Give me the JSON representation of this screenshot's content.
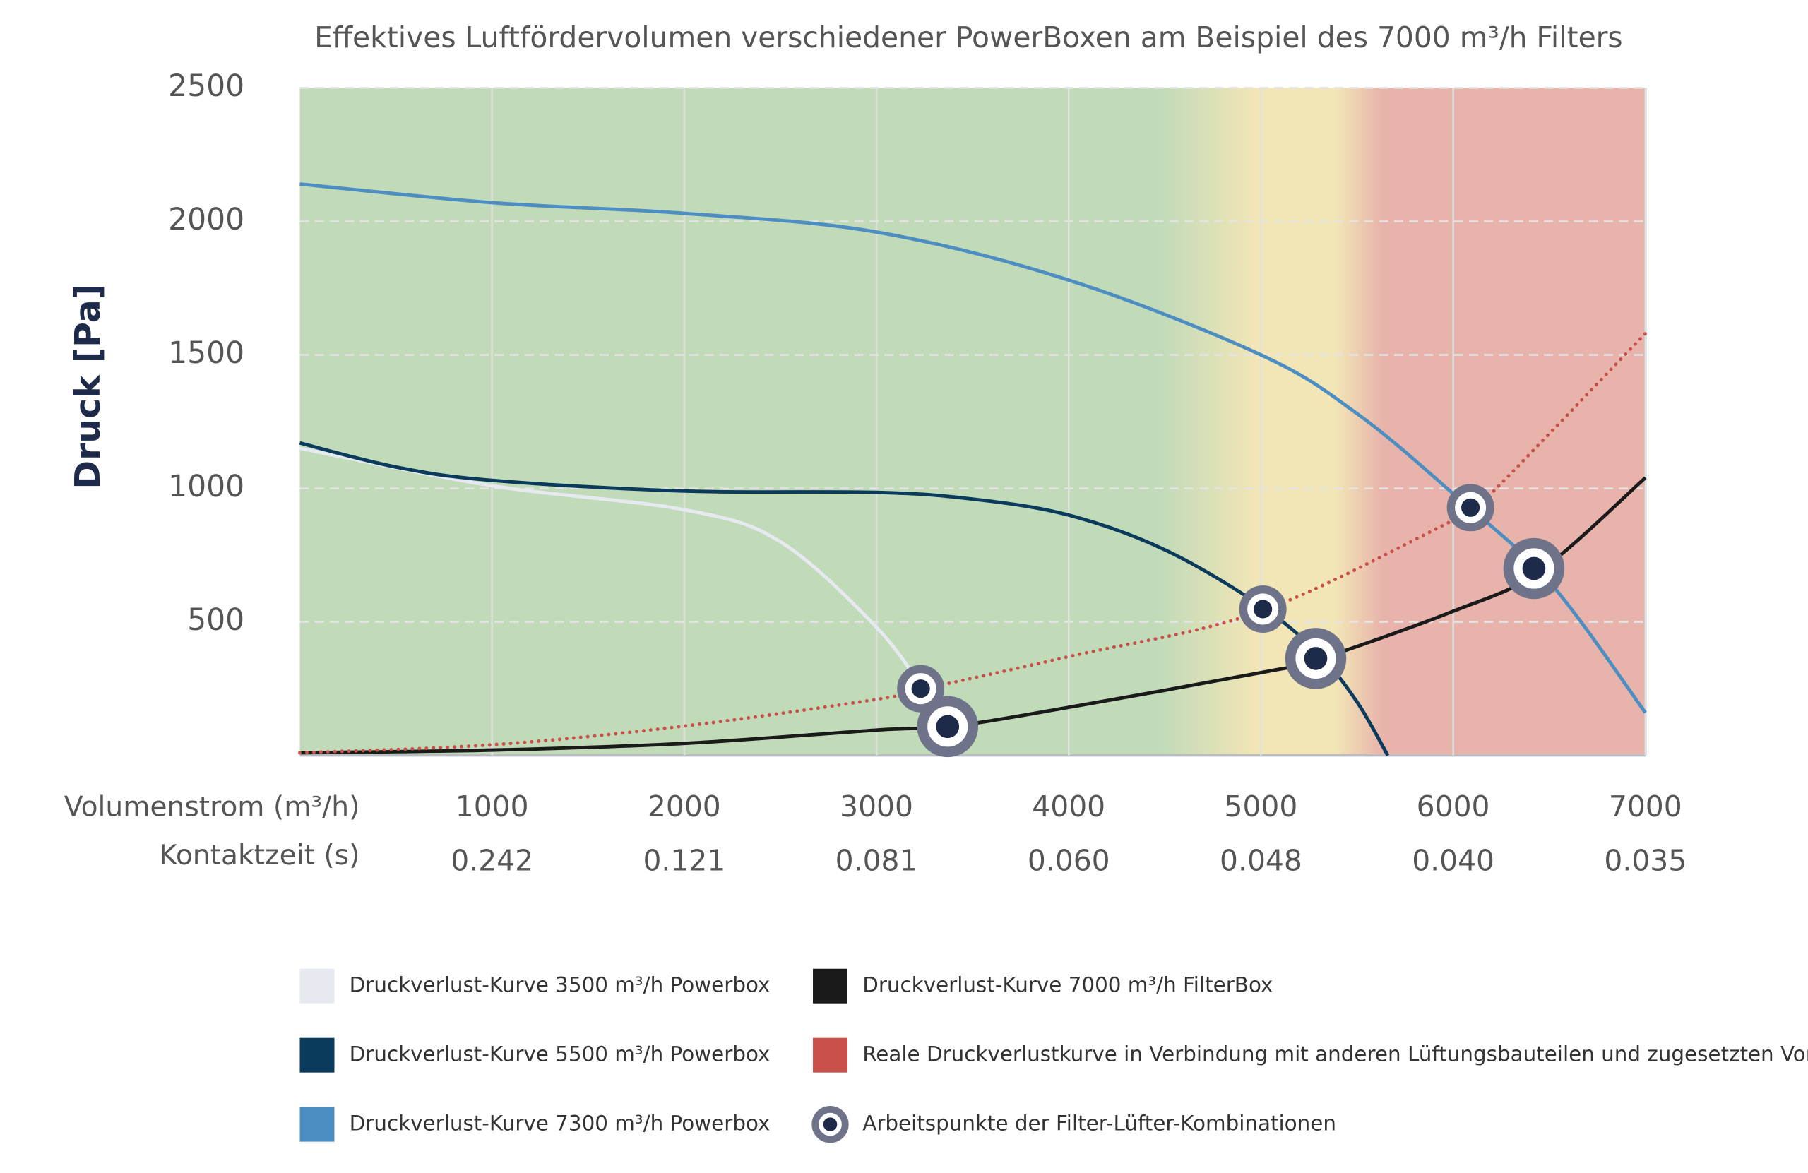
{
  "chart_data": {
    "type": "line",
    "title": "Effektives Luftfördervolumen verschiedener PowerBoxen am Beispiel des 7000 m³/h Filters",
    "y_label": "Druck [Pa]",
    "x_label": "Volumenstrom (m³/h)",
    "xlim": [
      0,
      7000
    ],
    "xticks": [
      1000,
      2000,
      3000,
      4000,
      5000,
      6000,
      7000
    ],
    "ylim": [
      0,
      2500
    ],
    "yticks": [
      500,
      1000,
      1500,
      2000,
      2500
    ],
    "grid": true,
    "contact_time": {
      "label": "Kontaktzeit (s)",
      "labels": [
        "0.242",
        "0.121",
        "0.081",
        "0.060",
        "0.048",
        "0.040",
        "0.035"
      ]
    },
    "series": [
      {
        "name": "Druckverlust-Kurve 3500 m³/h Powerbox",
        "color": "#e6e9ef",
        "style": "solid",
        "x": [
          0,
          1000,
          2000,
          2500,
          3000,
          3250
        ],
        "values": [
          1150,
          1010,
          920,
          800,
          480,
          240
        ]
      },
      {
        "name": "Druckverlust-Kurve 5500 m³/h Powerbox",
        "color": "#0b3b5c",
        "style": "solid",
        "x": [
          0,
          500,
          1000,
          2000,
          3000,
          3500,
          4000,
          4500,
          5000,
          5300,
          5500,
          5660
        ],
        "values": [
          1170,
          1080,
          1030,
          990,
          985,
          960,
          900,
          770,
          560,
          380,
          200,
          0
        ]
      },
      {
        "name": "Druckverlust-Kurve 7300 m³/h Powerbox",
        "color": "#4d8ec2",
        "style": "solid",
        "x": [
          0,
          1000,
          2000,
          3000,
          4000,
          5000,
          5500,
          6000,
          6500,
          7000
        ],
        "values": [
          2140,
          2070,
          2030,
          1960,
          1780,
          1500,
          1280,
          980,
          650,
          160
        ]
      },
      {
        "name": "Druckverlust-Kurve 7000 m³/h FilterBox",
        "color": "#1a1a1a",
        "style": "solid",
        "x": [
          0,
          1000,
          2000,
          3000,
          3400,
          4000,
          5000,
          5300,
          6000,
          6450,
          7000
        ],
        "values": [
          10,
          20,
          45,
          95,
          110,
          180,
          310,
          360,
          540,
          690,
          1040
        ]
      },
      {
        "name": "Reale Druckverlustkurve in Verbindung mit anderen Lüftungsbauteilen und zugesetzten Vorfiltern",
        "color": "#c8504a",
        "style": "dotted",
        "x": [
          0,
          1000,
          2000,
          3000,
          3250,
          4000,
          5000,
          6000,
          6100,
          7000
        ],
        "values": [
          10,
          40,
          110,
          210,
          250,
          370,
          540,
          880,
          910,
          1580
        ]
      }
    ],
    "operating_points": {
      "name": "Arbeitspunkte der Filter-Lüfter-Kombinationen",
      "color": "#6e7389",
      "x": [
        3230,
        5010,
        6090,
        3370,
        5285,
        6420
      ],
      "values": [
        250,
        548,
        928,
        108,
        363,
        700
      ]
    }
  }
}
